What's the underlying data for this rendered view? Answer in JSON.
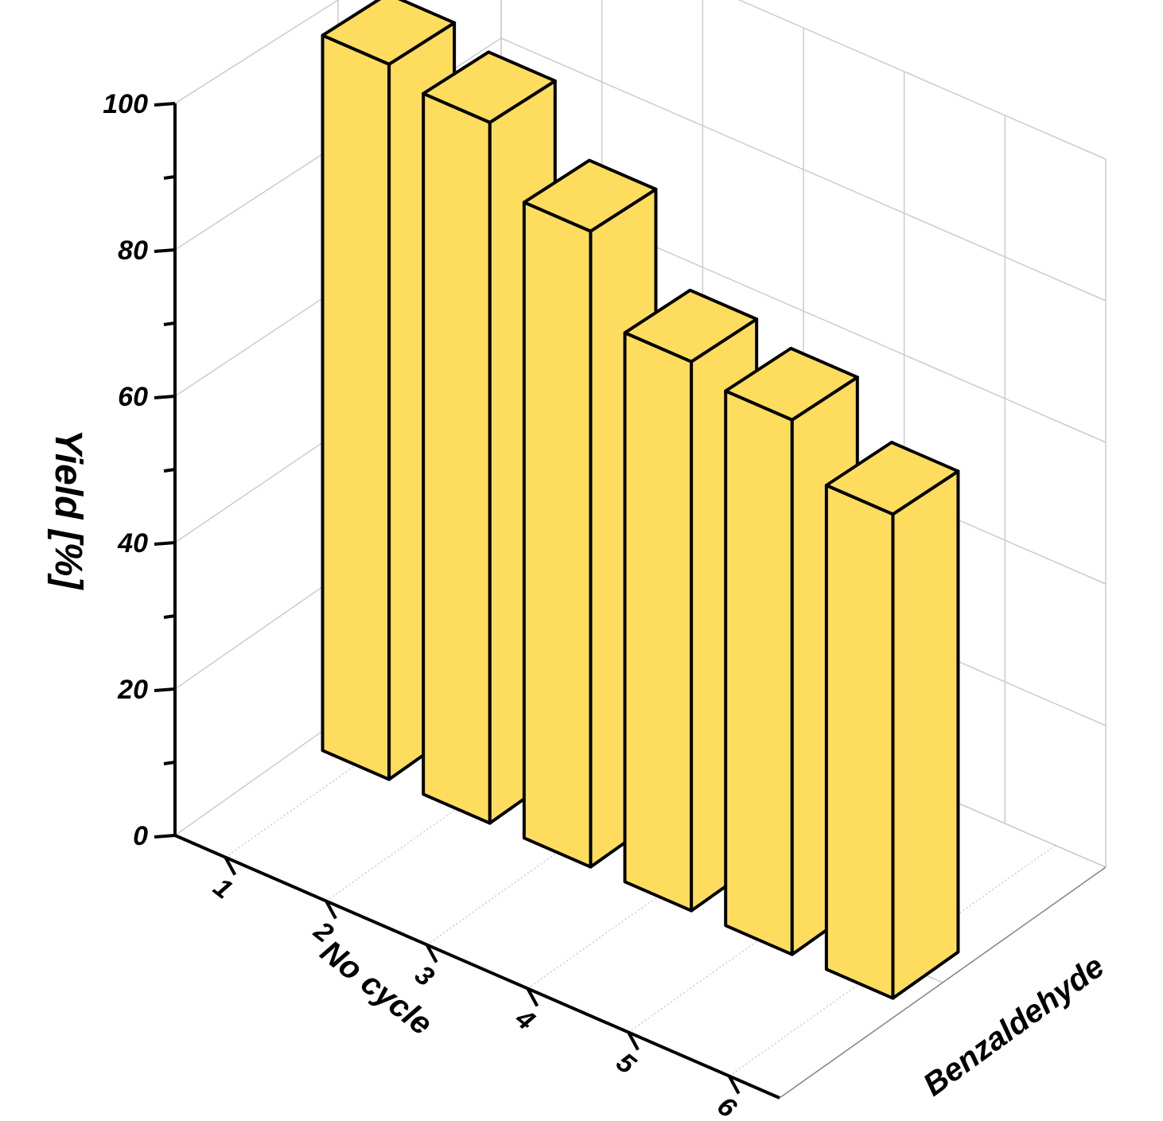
{
  "chart_data": {
    "type": "bar",
    "categories": [
      "1",
      "2",
      "3",
      "4",
      "5",
      "6"
    ],
    "series": [
      {
        "values": [
          99,
          97,
          88,
          76,
          74,
          67
        ]
      }
    ],
    "xlabel": "No cycle",
    "ylabel": "Yield [%]",
    "zlabel": "Benzaldehyde",
    "yticks": [
      "0",
      "20",
      "40",
      "60",
      "80",
      "100"
    ],
    "ylim": [
      0,
      100
    ],
    "grid": true,
    "colors": {
      "bar": "#fedd5e",
      "edge": "#000000",
      "grid": "#cccccc"
    }
  }
}
